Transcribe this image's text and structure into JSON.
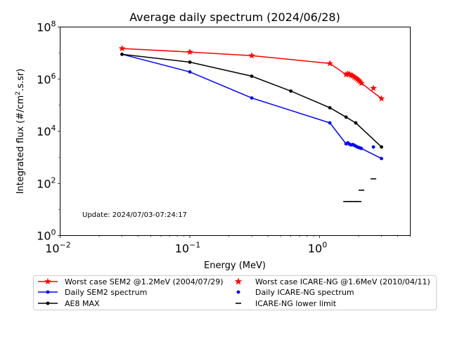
{
  "chart_data": {
    "type": "line",
    "title": "Average daily spectrum (2024/06/28)",
    "xlabel": "Energy (MeV)",
    "ylabel_parts": [
      "Integrated flux (#/cm",
      "2",
      ".s.sr)"
    ],
    "xscale": "log",
    "yscale": "log",
    "xlim": [
      0.01,
      5
    ],
    "ylim": [
      1,
      100000000
    ],
    "x_ticks": [
      {
        "value": 0.01,
        "base": "10",
        "exp": "−2"
      },
      {
        "value": 0.1,
        "base": "10",
        "exp": "−1"
      },
      {
        "value": 1,
        "base": "10",
        "exp": "0"
      }
    ],
    "y_ticks": [
      {
        "value": 1,
        "base": "10",
        "exp": "0"
      },
      {
        "value": 100,
        "base": "10",
        "exp": "2"
      },
      {
        "value": 10000,
        "base": "10",
        "exp": "4"
      },
      {
        "value": 1000000,
        "base": "10",
        "exp": "6"
      },
      {
        "value": 100000000,
        "base": "10",
        "exp": "8"
      }
    ],
    "grid": false,
    "legend_position": "below plot",
    "annotation": "Update: 2024/07/03-07:24:17",
    "series": [
      {
        "name": "Worst case SEM2 @1.2MeV (2004/07/29)",
        "style": "line",
        "marker": "star",
        "color": "#ff0000",
        "x": [
          0.03,
          0.1,
          0.3,
          1.2,
          1.6,
          1.65,
          1.7,
          1.75,
          1.8,
          1.85,
          1.9,
          1.95,
          2.0,
          2.05,
          2.1,
          3.0
        ],
        "y": [
          15000000,
          11000000,
          8000000,
          4000000,
          1500000,
          1600000,
          1550000,
          1400000,
          1350000,
          1200000,
          1100000,
          1000000,
          900000,
          800000,
          700000,
          180000
        ]
      },
      {
        "name": "Daily SEM2 spectrum",
        "style": "line",
        "marker": "dot",
        "color": "#0000ff",
        "x": [
          0.03,
          0.1,
          0.3,
          1.2,
          1.6,
          1.65,
          1.7,
          1.75,
          1.8,
          1.85,
          1.9,
          1.95,
          2.0,
          2.05,
          2.1,
          3.0
        ],
        "y": [
          9000000,
          1900000,
          190000,
          21000,
          3300,
          3600,
          3200,
          3000,
          3100,
          2900,
          2700,
          2500,
          2400,
          2300,
          2200,
          900
        ]
      },
      {
        "name": "AE8 MAX",
        "style": "line",
        "marker": "dot",
        "color": "#000000",
        "x": [
          0.03,
          0.1,
          0.3,
          0.6,
          1.2,
          1.6,
          1.9,
          3.0
        ],
        "y": [
          9000000,
          4500000,
          1300000,
          350000,
          80000,
          35000,
          21000,
          2500
        ]
      },
      {
        "name": "Worst case ICARE-NG @1.6MeV (2010/04/11)",
        "style": "scatter",
        "marker": "star",
        "color": "#ff0000",
        "x": [
          2.6
        ],
        "y": [
          450000
        ]
      },
      {
        "name": "Daily ICARE-NG spectrum",
        "style": "scatter",
        "marker": "dot",
        "color": "#0000ff",
        "x": [
          2.6
        ],
        "y": [
          2500
        ]
      },
      {
        "name": "ICARE-NG lower limit",
        "style": "hmarks",
        "marker": "hline",
        "color": "#000000",
        "x": [
          1.6,
          1.7,
          1.8,
          1.9,
          2.0,
          2.1,
          2.6
        ],
        "y": [
          20,
          20,
          20,
          20,
          20,
          55,
          150
        ]
      }
    ]
  }
}
